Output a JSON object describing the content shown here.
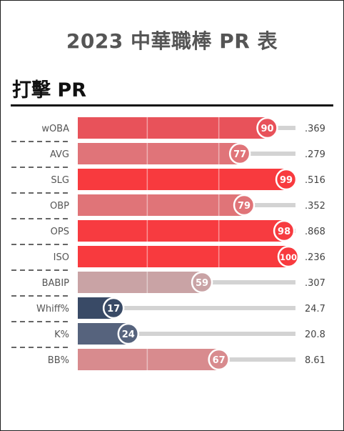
{
  "page": {
    "title": "2023 中華職棒 PR 表",
    "section_title": "打擊 PR"
  },
  "chart_data": {
    "type": "bar",
    "orientation": "horizontal",
    "xlim": [
      0,
      100
    ],
    "categories": [
      "wOBA",
      "AVG",
      "SLG",
      "OBP",
      "OPS",
      "ISO",
      "BABIP",
      "Whiff%",
      "K%",
      "BB%"
    ],
    "series": [
      {
        "values": [
          90,
          77,
          99,
          79,
          98,
          100,
          59,
          17,
          24,
          67
        ],
        "bar_colors": [
          "#e8525a",
          "#e07479",
          "#f83a3e",
          "#e07478",
          "#f73b40",
          "#f83a3e",
          "#c9a3a5",
          "#394a66",
          "#56637d",
          "#d88b8e"
        ]
      }
    ],
    "stat_values": [
      ".369",
      ".279",
      ".516",
      ".352",
      ".868",
      ".236",
      ".307",
      "24.7",
      "20.8",
      "8.61"
    ],
    "track_color": "#d3d3d3",
    "grid": "vertical lines at 33 and 67"
  }
}
